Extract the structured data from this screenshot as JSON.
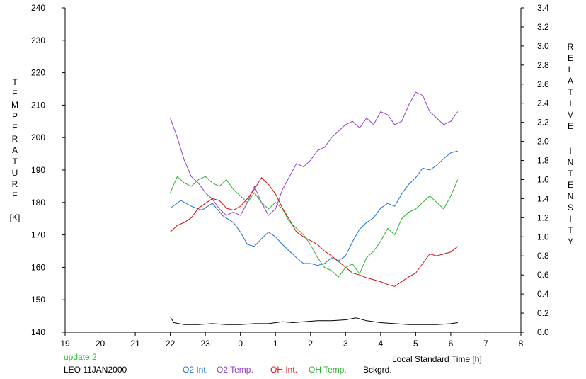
{
  "chart_data": {
    "type": "line",
    "xlabel": "Local Standard Time [h]",
    "x_ticks": [
      "19",
      "20",
      "21",
      "22",
      "23",
      "0",
      "1",
      "2",
      "3",
      "4",
      "5",
      "6",
      "7",
      "8"
    ],
    "left_axis": {
      "label_letters": [
        "T",
        "E",
        "M",
        "P",
        "E",
        "R",
        "A",
        "T",
        "U",
        "R",
        "E"
      ],
      "unit": "[K]",
      "range": [
        140,
        240
      ],
      "ticks": [
        "140",
        "150",
        "160",
        "170",
        "180",
        "190",
        "200",
        "210",
        "220",
        "230",
        "240"
      ]
    },
    "right_axis": {
      "label_letters_1": [
        "R",
        "E",
        "L",
        "A",
        "T",
        "I",
        "V",
        "E"
      ],
      "label_letters_2": [
        "I",
        "N",
        "T",
        "E",
        "N",
        "S",
        "I",
        "T",
        "Y"
      ],
      "range": [
        0.0,
        3.4
      ],
      "ticks": [
        "0.0",
        "0.2",
        "0.4",
        "0.6",
        "0.8",
        "1.0",
        "1.2",
        "1.4",
        "1.6",
        "1.8",
        "2.0",
        "2.2",
        "2.4",
        "2.6",
        "2.8",
        "3.0",
        "3.2",
        "3.4"
      ]
    },
    "x_range": [
      19,
      32
    ],
    "series": [
      {
        "name": "O2 Int.",
        "axis": "right",
        "color": "#2070d0",
        "points": [
          [
            22.0,
            1.3
          ],
          [
            22.3,
            1.38
          ],
          [
            22.6,
            1.32
          ],
          [
            22.9,
            1.28
          ],
          [
            23.2,
            1.35
          ],
          [
            23.5,
            1.22
          ],
          [
            23.8,
            1.15
          ],
          [
            24.0,
            1.05
          ],
          [
            24.2,
            0.92
          ],
          [
            24.4,
            0.9
          ],
          [
            24.6,
            0.98
          ],
          [
            24.8,
            1.05
          ],
          [
            25.0,
            1.0
          ],
          [
            25.2,
            0.92
          ],
          [
            25.4,
            0.85
          ],
          [
            25.6,
            0.78
          ],
          [
            25.8,
            0.72
          ],
          [
            26.0,
            0.72
          ],
          [
            26.2,
            0.7
          ],
          [
            26.4,
            0.72
          ],
          [
            26.6,
            0.78
          ],
          [
            26.8,
            0.75
          ],
          [
            27.0,
            0.8
          ],
          [
            27.2,
            0.95
          ],
          [
            27.4,
            1.08
          ],
          [
            27.6,
            1.15
          ],
          [
            27.8,
            1.2
          ],
          [
            28.0,
            1.3
          ],
          [
            28.2,
            1.35
          ],
          [
            28.4,
            1.32
          ],
          [
            28.6,
            1.45
          ],
          [
            28.8,
            1.55
          ],
          [
            29.0,
            1.62
          ],
          [
            29.2,
            1.72
          ],
          [
            29.4,
            1.7
          ],
          [
            29.6,
            1.75
          ],
          [
            29.8,
            1.82
          ],
          [
            30.0,
            1.88
          ],
          [
            30.2,
            1.9
          ]
        ]
      },
      {
        "name": "O2 Temp.",
        "axis": "left",
        "color": "#9040d0",
        "points": [
          [
            22.0,
            206
          ],
          [
            22.2,
            200
          ],
          [
            22.4,
            193
          ],
          [
            22.6,
            188
          ],
          [
            22.8,
            186
          ],
          [
            23.0,
            183
          ],
          [
            23.2,
            181
          ],
          [
            23.4,
            178
          ],
          [
            23.6,
            176
          ],
          [
            23.8,
            177
          ],
          [
            24.0,
            176
          ],
          [
            24.2,
            180
          ],
          [
            24.4,
            185
          ],
          [
            24.6,
            180
          ],
          [
            24.8,
            176
          ],
          [
            25.0,
            178
          ],
          [
            25.2,
            184
          ],
          [
            25.4,
            188
          ],
          [
            25.6,
            192
          ],
          [
            25.8,
            191
          ],
          [
            26.0,
            193
          ],
          [
            26.2,
            196
          ],
          [
            26.4,
            197
          ],
          [
            26.6,
            200
          ],
          [
            26.8,
            202
          ],
          [
            27.0,
            204
          ],
          [
            27.2,
            205
          ],
          [
            27.4,
            203
          ],
          [
            27.6,
            206
          ],
          [
            27.8,
            204
          ],
          [
            28.0,
            208
          ],
          [
            28.2,
            207
          ],
          [
            28.4,
            204
          ],
          [
            28.6,
            205
          ],
          [
            28.8,
            210
          ],
          [
            29.0,
            214
          ],
          [
            29.2,
            213
          ],
          [
            29.4,
            208
          ],
          [
            29.6,
            206
          ],
          [
            29.8,
            204
          ],
          [
            30.0,
            205
          ],
          [
            30.2,
            208
          ]
        ]
      },
      {
        "name": "OH Int.",
        "axis": "right",
        "color": "#d01010",
        "points": [
          [
            22.0,
            1.05
          ],
          [
            22.2,
            1.12
          ],
          [
            22.4,
            1.15
          ],
          [
            22.6,
            1.2
          ],
          [
            22.8,
            1.3
          ],
          [
            23.0,
            1.35
          ],
          [
            23.2,
            1.4
          ],
          [
            23.4,
            1.38
          ],
          [
            23.6,
            1.3
          ],
          [
            23.8,
            1.28
          ],
          [
            24.0,
            1.32
          ],
          [
            24.2,
            1.4
          ],
          [
            24.4,
            1.5
          ],
          [
            24.6,
            1.62
          ],
          [
            24.8,
            1.55
          ],
          [
            25.0,
            1.45
          ],
          [
            25.2,
            1.3
          ],
          [
            25.4,
            1.18
          ],
          [
            25.6,
            1.05
          ],
          [
            25.8,
            1.0
          ],
          [
            26.0,
            0.96
          ],
          [
            26.2,
            0.92
          ],
          [
            26.4,
            0.85
          ],
          [
            26.6,
            0.8
          ],
          [
            26.8,
            0.74
          ],
          [
            27.0,
            0.68
          ],
          [
            27.2,
            0.62
          ],
          [
            27.4,
            0.6
          ],
          [
            27.6,
            0.57
          ],
          [
            27.8,
            0.55
          ],
          [
            28.0,
            0.53
          ],
          [
            28.2,
            0.5
          ],
          [
            28.4,
            0.48
          ],
          [
            28.6,
            0.53
          ],
          [
            28.8,
            0.58
          ],
          [
            29.0,
            0.62
          ],
          [
            29.2,
            0.72
          ],
          [
            29.4,
            0.82
          ],
          [
            29.6,
            0.8
          ],
          [
            29.8,
            0.82
          ],
          [
            30.0,
            0.84
          ],
          [
            30.2,
            0.9
          ]
        ]
      },
      {
        "name": "OH Temp.",
        "axis": "left",
        "color": "#30b030",
        "points": [
          [
            22.0,
            183
          ],
          [
            22.2,
            188
          ],
          [
            22.4,
            186
          ],
          [
            22.6,
            185
          ],
          [
            22.8,
            187
          ],
          [
            23.0,
            188
          ],
          [
            23.2,
            186
          ],
          [
            23.4,
            185
          ],
          [
            23.6,
            187
          ],
          [
            23.8,
            184
          ],
          [
            24.0,
            182
          ],
          [
            24.2,
            180
          ],
          [
            24.4,
            183
          ],
          [
            24.6,
            180
          ],
          [
            24.8,
            178
          ],
          [
            25.0,
            180
          ],
          [
            25.2,
            178
          ],
          [
            25.4,
            174
          ],
          [
            25.6,
            172
          ],
          [
            25.8,
            170
          ],
          [
            26.0,
            167
          ],
          [
            26.2,
            163
          ],
          [
            26.4,
            160
          ],
          [
            26.6,
            159
          ],
          [
            26.8,
            157
          ],
          [
            27.0,
            160
          ],
          [
            27.2,
            161
          ],
          [
            27.4,
            158
          ],
          [
            27.6,
            163
          ],
          [
            27.8,
            165
          ],
          [
            28.0,
            168
          ],
          [
            28.2,
            172
          ],
          [
            28.4,
            170
          ],
          [
            28.6,
            175
          ],
          [
            28.8,
            177
          ],
          [
            29.0,
            178
          ],
          [
            29.2,
            180
          ],
          [
            29.4,
            182
          ],
          [
            29.6,
            180
          ],
          [
            29.8,
            178
          ],
          [
            30.0,
            182
          ],
          [
            30.2,
            187
          ]
        ]
      },
      {
        "name": "Bckgrd.",
        "axis": "right",
        "color": "#000000",
        "points": [
          [
            22.0,
            0.16
          ],
          [
            22.1,
            0.1
          ],
          [
            22.4,
            0.08
          ],
          [
            22.8,
            0.08
          ],
          [
            23.2,
            0.09
          ],
          [
            23.6,
            0.08
          ],
          [
            24.0,
            0.08
          ],
          [
            24.4,
            0.09
          ],
          [
            24.8,
            0.09
          ],
          [
            25.0,
            0.1
          ],
          [
            25.2,
            0.11
          ],
          [
            25.5,
            0.1
          ],
          [
            25.8,
            0.11
          ],
          [
            26.2,
            0.12
          ],
          [
            26.6,
            0.12
          ],
          [
            27.0,
            0.13
          ],
          [
            27.3,
            0.15
          ],
          [
            27.6,
            0.12
          ],
          [
            28.0,
            0.1
          ],
          [
            28.4,
            0.09
          ],
          [
            28.8,
            0.08
          ],
          [
            29.2,
            0.08
          ],
          [
            29.6,
            0.08
          ],
          [
            30.0,
            0.09
          ],
          [
            30.2,
            0.1
          ]
        ]
      }
    ],
    "legend_placement": "bottom"
  },
  "footer": {
    "status": "update 2",
    "station": "LEO 11JAN2000"
  },
  "colors": {
    "status": "#30c030",
    "axis": "#000000"
  }
}
